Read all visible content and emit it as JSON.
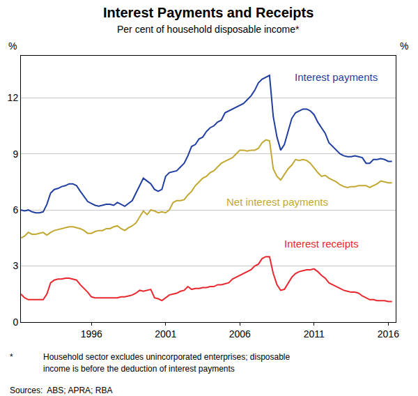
{
  "chart_data": {
    "type": "line",
    "title": "Interest Payments and Receipts",
    "subtitle": "Per cent of household disposable income*",
    "ylabel": "%",
    "y2label": "%",
    "x": [
      1991.25,
      1991.5,
      1991.75,
      1992.0,
      1992.25,
      1992.5,
      1992.75,
      1993.0,
      1993.25,
      1993.5,
      1993.75,
      1994.0,
      1994.25,
      1994.5,
      1994.75,
      1995.0,
      1995.25,
      1995.5,
      1995.75,
      1996.0,
      1996.25,
      1996.5,
      1996.75,
      1997.0,
      1997.25,
      1997.5,
      1997.75,
      1998.0,
      1998.25,
      1998.5,
      1998.75,
      1999.0,
      1999.25,
      1999.5,
      1999.75,
      2000.0,
      2000.25,
      2000.5,
      2000.75,
      2001.0,
      2001.25,
      2001.5,
      2001.75,
      2002.0,
      2002.25,
      2002.5,
      2002.75,
      2003.0,
      2003.25,
      2003.5,
      2003.75,
      2004.0,
      2004.25,
      2004.5,
      2004.75,
      2005.0,
      2005.25,
      2005.5,
      2005.75,
      2006.0,
      2006.25,
      2006.5,
      2006.75,
      2007.0,
      2007.25,
      2007.5,
      2007.75,
      2008.0,
      2008.25,
      2008.5,
      2008.75,
      2009.0,
      2009.25,
      2009.5,
      2009.75,
      2010.0,
      2010.25,
      2010.5,
      2010.75,
      2011.0,
      2011.25,
      2011.5,
      2011.75,
      2012.0,
      2012.25,
      2012.5,
      2012.75,
      2013.0,
      2013.25,
      2013.5,
      2013.75,
      2014.0,
      2014.25,
      2014.5,
      2014.75,
      2015.0,
      2015.25,
      2015.5,
      2015.75,
      2016.0,
      2016.25
    ],
    "series": [
      {
        "name": "Interest payments",
        "color": "#1f3ea0",
        "values": [
          6.0,
          5.95,
          6.0,
          5.9,
          5.85,
          5.85,
          5.9,
          6.3,
          6.9,
          7.1,
          7.15,
          7.25,
          7.3,
          7.4,
          7.4,
          7.3,
          7.0,
          6.7,
          6.45,
          6.35,
          6.25,
          6.2,
          6.25,
          6.3,
          6.3,
          6.25,
          6.4,
          6.3,
          6.2,
          6.35,
          6.5,
          6.9,
          7.3,
          7.7,
          7.55,
          7.4,
          7.1,
          7.0,
          7.1,
          7.8,
          8.0,
          8.05,
          8.1,
          8.3,
          8.5,
          8.9,
          9.4,
          9.5,
          9.8,
          9.9,
          10.2,
          10.4,
          10.5,
          10.7,
          10.8,
          11.2,
          11.3,
          11.4,
          11.5,
          11.6,
          11.7,
          11.9,
          12.1,
          12.4,
          12.8,
          13.0,
          13.1,
          13.2,
          11.0,
          9.9,
          9.2,
          9.5,
          10.2,
          10.9,
          11.2,
          11.3,
          11.4,
          11.4,
          11.3,
          11.1,
          10.7,
          10.4,
          10.1,
          9.6,
          9.4,
          9.2,
          9.0,
          8.9,
          8.85,
          8.85,
          8.9,
          8.85,
          8.8,
          8.5,
          8.5,
          8.7,
          8.7,
          8.75,
          8.7,
          8.6,
          8.6
        ]
      },
      {
        "name": "Net interest payments",
        "color": "#c2a830",
        "values": [
          4.5,
          4.6,
          4.8,
          4.7,
          4.7,
          4.75,
          4.8,
          4.65,
          4.8,
          4.9,
          4.95,
          5.0,
          5.05,
          5.1,
          5.1,
          5.05,
          5.0,
          4.9,
          4.75,
          4.75,
          4.85,
          4.9,
          4.9,
          5.0,
          5.0,
          5.1,
          5.15,
          5.0,
          4.9,
          5.05,
          5.15,
          5.3,
          5.6,
          5.95,
          5.75,
          6.0,
          5.95,
          5.85,
          5.9,
          5.85,
          6.0,
          6.4,
          6.5,
          6.5,
          6.55,
          6.8,
          7.0,
          7.3,
          7.5,
          7.7,
          7.8,
          8.0,
          8.1,
          8.3,
          8.5,
          8.6,
          8.7,
          8.8,
          9.0,
          9.2,
          9.2,
          9.15,
          9.2,
          9.2,
          9.3,
          9.6,
          9.75,
          9.7,
          8.2,
          7.8,
          7.6,
          7.9,
          8.2,
          8.4,
          8.7,
          8.65,
          8.7,
          8.65,
          8.5,
          8.25,
          8.0,
          7.8,
          7.85,
          7.7,
          7.6,
          7.5,
          7.35,
          7.25,
          7.2,
          7.25,
          7.25,
          7.3,
          7.3,
          7.3,
          7.2,
          7.3,
          7.4,
          7.55,
          7.5,
          7.45,
          7.45
        ]
      },
      {
        "name": "Interest receipts",
        "color": "#e8282e",
        "values": [
          1.5,
          1.3,
          1.2,
          1.2,
          1.2,
          1.2,
          1.2,
          1.5,
          2.1,
          2.25,
          2.3,
          2.3,
          2.35,
          2.35,
          2.3,
          2.25,
          2.0,
          1.8,
          1.6,
          1.35,
          1.3,
          1.3,
          1.3,
          1.3,
          1.3,
          1.3,
          1.3,
          1.35,
          1.35,
          1.4,
          1.45,
          1.55,
          1.7,
          1.65,
          1.7,
          1.75,
          1.3,
          1.25,
          1.15,
          1.3,
          1.45,
          1.5,
          1.55,
          1.65,
          1.7,
          1.9,
          1.75,
          1.8,
          1.8,
          1.85,
          1.85,
          1.9,
          1.9,
          2.0,
          2.0,
          2.05,
          2.1,
          2.3,
          2.4,
          2.5,
          2.6,
          2.7,
          2.8,
          3.0,
          3.1,
          3.4,
          3.5,
          3.5,
          2.6,
          2.0,
          1.7,
          1.75,
          2.1,
          2.4,
          2.6,
          2.7,
          2.75,
          2.8,
          2.8,
          2.85,
          2.7,
          2.5,
          2.35,
          2.1,
          2.0,
          1.9,
          1.8,
          1.7,
          1.65,
          1.6,
          1.6,
          1.55,
          1.4,
          1.3,
          1.2,
          1.2,
          1.15,
          1.15,
          1.15,
          1.1,
          1.1
        ]
      }
    ],
    "annotations": [
      {
        "text": "Interest payments",
        "x": 2012.5,
        "y": 13.1,
        "color": "#1f3ea0"
      },
      {
        "text": "Net interest payments",
        "x": 2008.5,
        "y": 6.45,
        "color": "#c2a830"
      },
      {
        "text": "Interest receipts",
        "x": 2011.5,
        "y": 4.2,
        "color": "#e8282e"
      }
    ],
    "xlim": [
      1991.25,
      2016.5
    ],
    "xticks": [
      1996,
      2001,
      2006,
      2011,
      2016
    ],
    "ylim": [
      0,
      14.25
    ],
    "yticks": [
      0,
      3,
      6,
      9,
      12
    ],
    "y2lim": [
      0,
      14.25
    ],
    "y2ticks": [
      0,
      3,
      6,
      9,
      12
    ],
    "grid": true,
    "note_mark": "*",
    "notes": [
      "Household sector excludes unincorporated enterprises; disposable",
      "income is before the deduction of interest payments"
    ],
    "source": "Sources:  ABS; APRA; RBA"
  }
}
